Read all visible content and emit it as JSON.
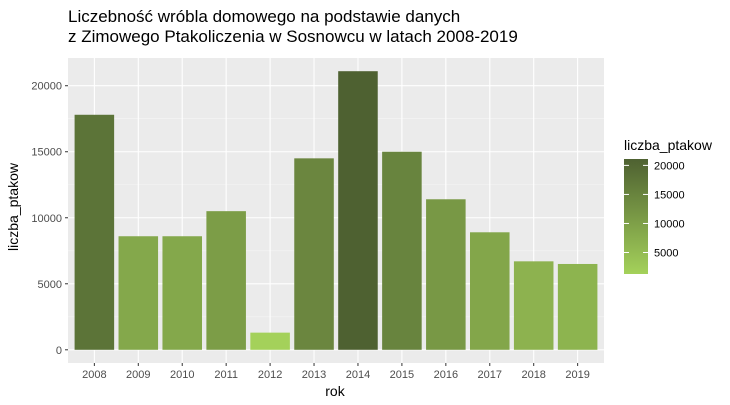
{
  "chart_data": {
    "type": "bar",
    "title": [
      "Liczebność wróbla domowego na podstawie danych",
      "z Zimowego Ptakoliczenia w Sosnowcu w latach 2008-2019"
    ],
    "xlabel": "rok",
    "ylabel": "liczba_ptakow",
    "categories": [
      "2008",
      "2009",
      "2010",
      "2011",
      "2012",
      "2013",
      "2014",
      "2015",
      "2016",
      "2017",
      "2018",
      "2019"
    ],
    "values": [
      17800,
      8600,
      8600,
      10500,
      1300,
      14500,
      21100,
      15000,
      11400,
      8900,
      6700,
      6500
    ],
    "ylim": [
      -1000,
      22100
    ],
    "yticks": [
      0,
      5000,
      10000,
      15000,
      20000
    ],
    "ytick_labels": [
      "0",
      "5000",
      "10000",
      "15000",
      "20000"
    ],
    "grid": true,
    "legend": {
      "title": "liczba_ptakow",
      "placement": "right",
      "type": "colorbar",
      "ticks": [
        5000,
        10000,
        15000,
        20000
      ],
      "tick_labels": [
        "5000",
        "10000",
        "15000",
        "20000"
      ],
      "range": [
        1300,
        21100
      ],
      "color_low": "#a4d15a",
      "color_high": "#4e6131"
    },
    "colors": {
      "panel_background": "#ebebeb",
      "grid_major": "#ffffff",
      "grid_minor": "#f5f5f5"
    }
  }
}
